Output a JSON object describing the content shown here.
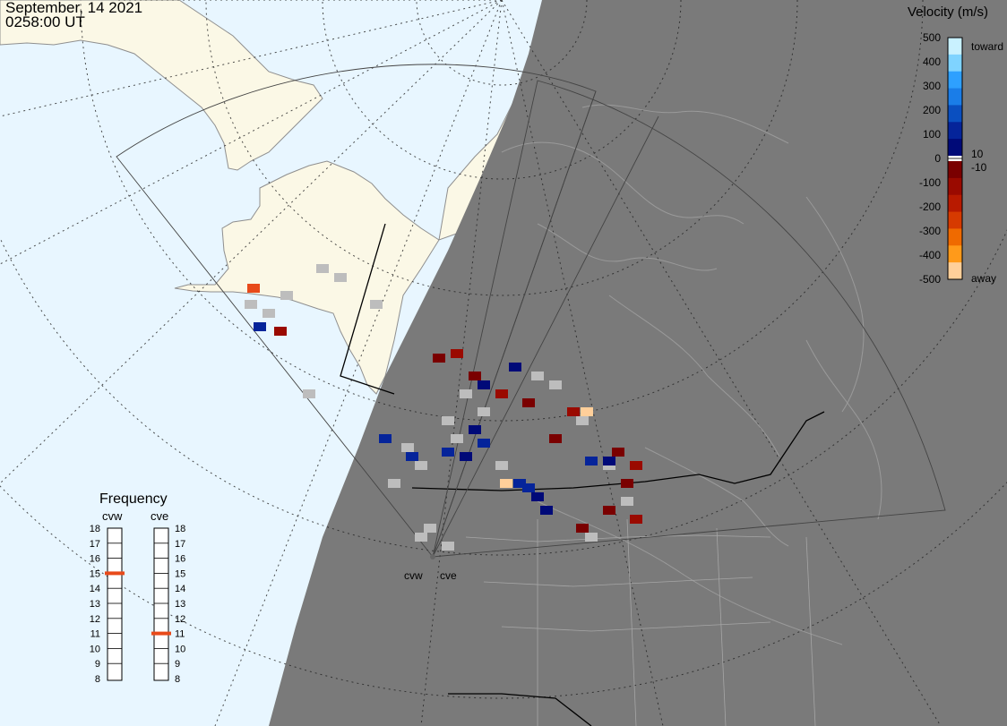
{
  "header": {
    "date": "September, 14 2021",
    "time": "0258:00 UT"
  },
  "velocity_legend": {
    "title": "Velocity (m/s)",
    "ticks": [
      "500",
      "400",
      "300",
      "200",
      "100",
      "0",
      "-100",
      "-200",
      "-300",
      "-400",
      "-500"
    ],
    "near_zero_labels": [
      "10",
      "-10"
    ],
    "toward_label": "toward",
    "away_label": "away",
    "colors": {
      "toward": [
        "#c9f1ff",
        "#7fd3ff",
        "#2ea0ff",
        "#1a7de8",
        "#0a4fc0",
        "#05249a",
        "#000a78"
      ],
      "away": [
        "#7a0000",
        "#9a0a00",
        "#b81a00",
        "#d63a00",
        "#ef6a00",
        "#ff9a1a",
        "#ffcf9a"
      ],
      "ground_scatter": "#bdbdbd"
    }
  },
  "frequency_panel": {
    "title": "Frequency",
    "radars": [
      {
        "name": "cvw",
        "scale": [
          "18",
          "17",
          "16",
          "15",
          "14",
          "13",
          "12",
          "11",
          "10",
          "9",
          "8"
        ],
        "current_mhz": 15
      },
      {
        "name": "cve",
        "scale": [
          "18",
          "17",
          "16",
          "15",
          "14",
          "13",
          "12",
          "11",
          "10",
          "9",
          "8"
        ],
        "current_mhz": 11
      }
    ],
    "marker_color": "#e84a1a"
  },
  "sites": {
    "west": "cvw",
    "east": "cve"
  },
  "map_colors": {
    "ocean": "#e8f6ff",
    "land": "#fbf8e6",
    "night": "#7a7a7a",
    "coast": "#9a9a9a"
  }
}
